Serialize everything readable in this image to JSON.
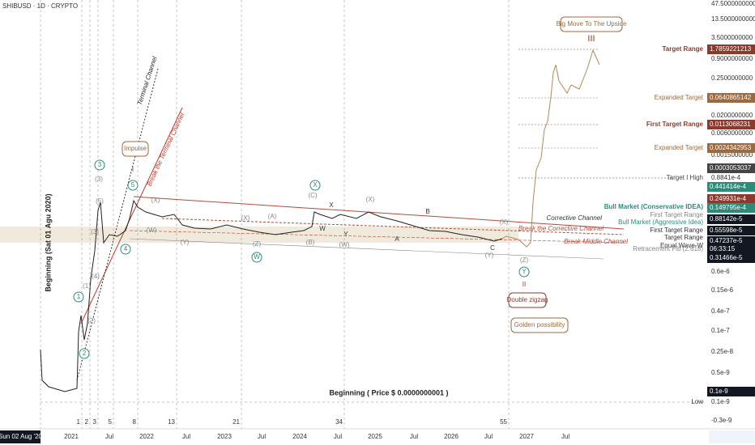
{
  "header": {
    "symbol": "SHIBUSD · 1D · CRYPTO"
  },
  "price_axis": {
    "labels": [
      "47.5000000000",
      "13.5000000000",
      "3.5000000000",
      "0.9000000000",
      "0.2500000000",
      "0.0200000000",
      "0.0060000000",
      "0.0015000000",
      "0.8841e-4",
      "0.6e-6",
      "0.15e-6",
      "0.4e-7",
      "0.1e-7",
      "0.25e-8",
      "0.5e-9",
      "0.1e-9",
      "-0.3e-9"
    ],
    "badges": [
      "1.7859221213",
      "0.0640865142",
      "0.0113068231",
      "0.0024342953",
      "0.0003053037",
      "0.441414e-4",
      "0.249931e-4",
      "0.149795e-4",
      "0.88142e-5",
      "0.55598e-5",
      "0.47237e-5",
      "06:33:15",
      "0.31466e-5",
      "0.1e-9"
    ]
  },
  "level_notes": [
    "Target Range",
    "Expanded Target",
    "First Target Range",
    "Expanded Target",
    "Target I High",
    "Bull Market (Conservative IDEA)",
    "First Target Range",
    "Bull Market (Aggressive Idea)",
    "First Target Range",
    "Target Range",
    "Equal Wave-W",
    "Retracement Fib (2.618)",
    "Low"
  ],
  "channel_notes": [
    "Corrective Channel",
    "Break the Corrective Channel",
    "Break Middle Channel"
  ],
  "time_axis": {
    "start": "Sun 02 Aug '20",
    "labels": [
      "2021",
      "Jul",
      "2022",
      "Jul",
      "2023",
      "Jul",
      "2024",
      "Jul",
      "2025",
      "Jul",
      "2026",
      "Jul",
      "2027",
      "Jul"
    ]
  },
  "fib_counts": [
    "1",
    "2",
    "3",
    "5",
    "8",
    "13",
    "21",
    "34",
    "55"
  ],
  "annotations": {
    "beginning_date": "Beginning (Sat 01 Agu 2020)",
    "beginning_price": "Beginning ( Price $ 0.0000000001 )",
    "impulse": "Impulse",
    "big_move": "Big Move To The Upside",
    "wave_iii": "III",
    "double_zigzag": "Double zigzag",
    "golden": "Golden possibility",
    "terminal_channel": "Terminal Channel",
    "break_terminal": "Break the Terminal Channel"
  },
  "circled_labels": [
    "1",
    "2",
    "3",
    "4",
    "5",
    "X",
    "W",
    "Y"
  ],
  "wave_labels": [
    "(1)",
    "(2)",
    "(3)",
    "(4)",
    "(5)",
    "I",
    "(X)",
    "(W)",
    "(Y)",
    "(X)",
    "(A)",
    "(Z)",
    "(C)",
    "X",
    "W",
    "(B)",
    "(X)",
    "Y",
    "(W)",
    "A",
    "B",
    "C",
    "(Y)",
    "(X)",
    "(Z)",
    "II",
    "(3)"
  ]
}
